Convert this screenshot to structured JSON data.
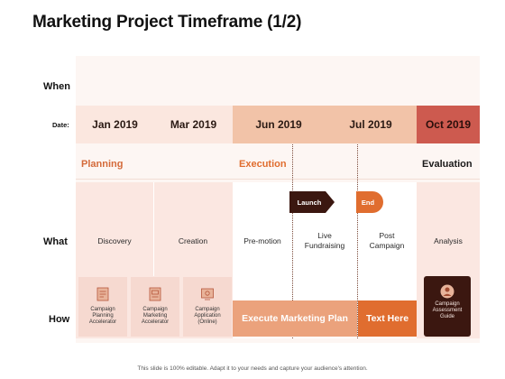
{
  "title": "Marketing Project Timeframe (1/2)",
  "labels": {
    "when": "When",
    "date": "Date:",
    "what": "What",
    "how": "How"
  },
  "dates": [
    "Jan 2019",
    "Mar 2019",
    "Jun 2019",
    "Jul 2019",
    "Oct 2019"
  ],
  "phases": {
    "planning": "Planning",
    "execution": "Execution",
    "evaluation": "Evaluation"
  },
  "what": {
    "discovery": "Discovery",
    "creation": "Creation",
    "premotion": "Pre-motion",
    "live": "Live Fundraising",
    "post": "Post Campaign",
    "analysis": "Analysis"
  },
  "markers": {
    "launch": "Launch",
    "end": "End"
  },
  "how": {
    "item1": "Campaign Planning Accelerator",
    "item2": "Campaign Marketing Accelerator",
    "item3": "Campaign Application (Online)",
    "execute": "Execute Marketing Plan",
    "texthere": "Text Here",
    "assessment": "Campaign Assessment Guide"
  },
  "footer": "This slide is 100% editable. Adapt it to your needs and capture your audience's attention.",
  "colors": {
    "date_light": "#fbe7df",
    "date_mid": "#f2c3a8",
    "date_dark": "#cd5a4f",
    "accent_orange": "#e06d2f",
    "banner_orange": "#eba27c",
    "dark_brown": "#3b1710",
    "phase_color": "#d46a3a"
  },
  "icons": [
    "document-icon",
    "document-icon",
    "document-icon",
    "user-icon"
  ]
}
